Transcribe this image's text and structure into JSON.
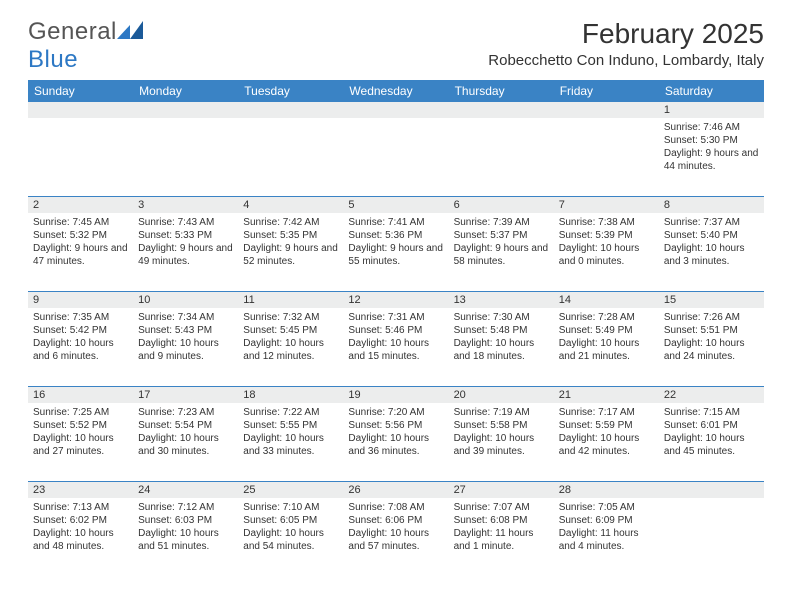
{
  "brand": {
    "name_a": "General",
    "name_b": "Blue"
  },
  "title": "February 2025",
  "location": "Robecchetto Con Induno, Lombardy, Italy",
  "colors": {
    "header_bg": "#3a83c5",
    "header_text": "#ffffff",
    "daynum_bg": "#eceded",
    "border": "#3a83c5",
    "text": "#333333",
    "brand_blue": "#2d78c4"
  },
  "day_labels": [
    "Sunday",
    "Monday",
    "Tuesday",
    "Wednesday",
    "Thursday",
    "Friday",
    "Saturday"
  ],
  "weeks": [
    [
      null,
      null,
      null,
      null,
      null,
      null,
      {
        "n": "1",
        "sr": "Sunrise: 7:46 AM",
        "ss": "Sunset: 5:30 PM",
        "dl": "Daylight: 9 hours and 44 minutes."
      }
    ],
    [
      {
        "n": "2",
        "sr": "Sunrise: 7:45 AM",
        "ss": "Sunset: 5:32 PM",
        "dl": "Daylight: 9 hours and 47 minutes."
      },
      {
        "n": "3",
        "sr": "Sunrise: 7:43 AM",
        "ss": "Sunset: 5:33 PM",
        "dl": "Daylight: 9 hours and 49 minutes."
      },
      {
        "n": "4",
        "sr": "Sunrise: 7:42 AM",
        "ss": "Sunset: 5:35 PM",
        "dl": "Daylight: 9 hours and 52 minutes."
      },
      {
        "n": "5",
        "sr": "Sunrise: 7:41 AM",
        "ss": "Sunset: 5:36 PM",
        "dl": "Daylight: 9 hours and 55 minutes."
      },
      {
        "n": "6",
        "sr": "Sunrise: 7:39 AM",
        "ss": "Sunset: 5:37 PM",
        "dl": "Daylight: 9 hours and 58 minutes."
      },
      {
        "n": "7",
        "sr": "Sunrise: 7:38 AM",
        "ss": "Sunset: 5:39 PM",
        "dl": "Daylight: 10 hours and 0 minutes."
      },
      {
        "n": "8",
        "sr": "Sunrise: 7:37 AM",
        "ss": "Sunset: 5:40 PM",
        "dl": "Daylight: 10 hours and 3 minutes."
      }
    ],
    [
      {
        "n": "9",
        "sr": "Sunrise: 7:35 AM",
        "ss": "Sunset: 5:42 PM",
        "dl": "Daylight: 10 hours and 6 minutes."
      },
      {
        "n": "10",
        "sr": "Sunrise: 7:34 AM",
        "ss": "Sunset: 5:43 PM",
        "dl": "Daylight: 10 hours and 9 minutes."
      },
      {
        "n": "11",
        "sr": "Sunrise: 7:32 AM",
        "ss": "Sunset: 5:45 PM",
        "dl": "Daylight: 10 hours and 12 minutes."
      },
      {
        "n": "12",
        "sr": "Sunrise: 7:31 AM",
        "ss": "Sunset: 5:46 PM",
        "dl": "Daylight: 10 hours and 15 minutes."
      },
      {
        "n": "13",
        "sr": "Sunrise: 7:30 AM",
        "ss": "Sunset: 5:48 PM",
        "dl": "Daylight: 10 hours and 18 minutes."
      },
      {
        "n": "14",
        "sr": "Sunrise: 7:28 AM",
        "ss": "Sunset: 5:49 PM",
        "dl": "Daylight: 10 hours and 21 minutes."
      },
      {
        "n": "15",
        "sr": "Sunrise: 7:26 AM",
        "ss": "Sunset: 5:51 PM",
        "dl": "Daylight: 10 hours and 24 minutes."
      }
    ],
    [
      {
        "n": "16",
        "sr": "Sunrise: 7:25 AM",
        "ss": "Sunset: 5:52 PM",
        "dl": "Daylight: 10 hours and 27 minutes."
      },
      {
        "n": "17",
        "sr": "Sunrise: 7:23 AM",
        "ss": "Sunset: 5:54 PM",
        "dl": "Daylight: 10 hours and 30 minutes."
      },
      {
        "n": "18",
        "sr": "Sunrise: 7:22 AM",
        "ss": "Sunset: 5:55 PM",
        "dl": "Daylight: 10 hours and 33 minutes."
      },
      {
        "n": "19",
        "sr": "Sunrise: 7:20 AM",
        "ss": "Sunset: 5:56 PM",
        "dl": "Daylight: 10 hours and 36 minutes."
      },
      {
        "n": "20",
        "sr": "Sunrise: 7:19 AM",
        "ss": "Sunset: 5:58 PM",
        "dl": "Daylight: 10 hours and 39 minutes."
      },
      {
        "n": "21",
        "sr": "Sunrise: 7:17 AM",
        "ss": "Sunset: 5:59 PM",
        "dl": "Daylight: 10 hours and 42 minutes."
      },
      {
        "n": "22",
        "sr": "Sunrise: 7:15 AM",
        "ss": "Sunset: 6:01 PM",
        "dl": "Daylight: 10 hours and 45 minutes."
      }
    ],
    [
      {
        "n": "23",
        "sr": "Sunrise: 7:13 AM",
        "ss": "Sunset: 6:02 PM",
        "dl": "Daylight: 10 hours and 48 minutes."
      },
      {
        "n": "24",
        "sr": "Sunrise: 7:12 AM",
        "ss": "Sunset: 6:03 PM",
        "dl": "Daylight: 10 hours and 51 minutes."
      },
      {
        "n": "25",
        "sr": "Sunrise: 7:10 AM",
        "ss": "Sunset: 6:05 PM",
        "dl": "Daylight: 10 hours and 54 minutes."
      },
      {
        "n": "26",
        "sr": "Sunrise: 7:08 AM",
        "ss": "Sunset: 6:06 PM",
        "dl": "Daylight: 10 hours and 57 minutes."
      },
      {
        "n": "27",
        "sr": "Sunrise: 7:07 AM",
        "ss": "Sunset: 6:08 PM",
        "dl": "Daylight: 11 hours and 1 minute."
      },
      {
        "n": "28",
        "sr": "Sunrise: 7:05 AM",
        "ss": "Sunset: 6:09 PM",
        "dl": "Daylight: 11 hours and 4 minutes."
      },
      null
    ]
  ]
}
